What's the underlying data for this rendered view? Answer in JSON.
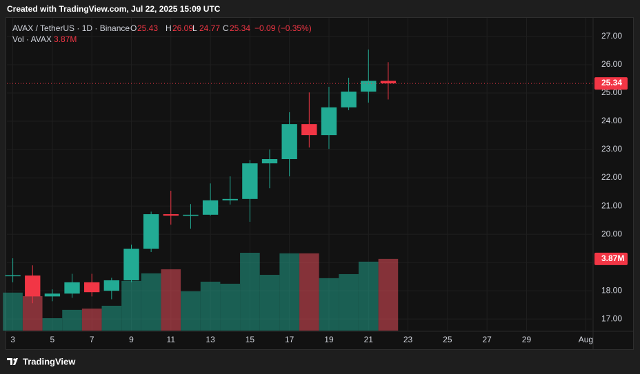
{
  "banner": "Created with TradingView.com, Jul 22, 2025 15:09 UTC",
  "footer": "TradingView",
  "chart_data": {
    "type": "candlestick",
    "symbol": "AVAX / TetherUS · 1D · Binance",
    "ohlc_labels": [
      "O",
      "H",
      "L",
      "C"
    ],
    "change": "−0.09 (−0.35%)",
    "x": [
      3,
      4,
      5,
      6,
      7,
      8,
      9,
      10,
      11,
      12,
      13,
      14,
      15,
      16,
      17,
      18,
      19,
      20,
      21,
      22
    ],
    "open": [
      18.52,
      18.54,
      17.8,
      17.9,
      18.3,
      18.0,
      18.37,
      19.49,
      20.71,
      20.66,
      20.69,
      21.2,
      21.25,
      22.51,
      22.66,
      23.9,
      23.51,
      24.49,
      25.05,
      25.43
    ],
    "high": [
      19.15,
      18.9,
      18.05,
      18.6,
      18.6,
      18.46,
      19.63,
      20.8,
      21.54,
      21.07,
      21.8,
      22.05,
      22.63,
      23.0,
      24.32,
      25.02,
      25.22,
      25.54,
      26.54,
      26.09
    ],
    "low": [
      18.3,
      17.56,
      17.63,
      17.75,
      17.8,
      17.7,
      18.3,
      19.37,
      20.34,
      20.2,
      20.66,
      21.05,
      20.44,
      21.63,
      22.05,
      23.07,
      23.02,
      24.39,
      24.66,
      24.77
    ],
    "close": [
      18.55,
      17.8,
      17.9,
      18.3,
      17.95,
      18.37,
      19.49,
      20.71,
      20.66,
      20.69,
      21.2,
      21.25,
      22.51,
      22.66,
      23.9,
      23.51,
      24.49,
      25.05,
      25.43,
      25.34
    ],
    "up_color": "#22ab94",
    "down_color": "#f23645",
    "volume": {
      "name": "Vol · AVAX",
      "values": [
        2.05,
        1.86,
        0.67,
        1.12,
        1.19,
        1.34,
        2.68,
        3.09,
        3.31,
        2.12,
        2.64,
        2.53,
        4.2,
        3.01,
        4.17,
        4.17,
        2.83,
        3.05,
        3.72,
        3.87
      ],
      "value_labels": [
        null,
        null,
        null,
        null,
        null,
        null,
        null,
        null,
        null,
        null,
        null,
        null,
        null,
        null,
        null,
        null,
        null,
        null,
        null,
        "3.87M"
      ]
    },
    "xlim": [
      2.7,
      32.3
    ],
    "xticks": [
      3,
      5,
      7,
      9,
      11,
      13,
      15,
      17,
      19,
      21,
      23,
      25,
      27,
      29,
      {
        "value": 32,
        "label": "Aug"
      }
    ],
    "ylim": [
      16.59,
      27.56
    ],
    "yticks": [
      {
        "value": 17,
        "label": "17.00"
      },
      {
        "value": 18,
        "label": "18.00"
      },
      {
        "value": 19,
        "label": "19.00"
      },
      {
        "value": 20,
        "label": "20.00"
      },
      {
        "value": 21,
        "label": "21.00"
      },
      {
        "value": 22,
        "label": "22.00"
      },
      {
        "value": 23,
        "label": "23.00"
      },
      {
        "value": 24,
        "label": "24.00"
      },
      {
        "value": 25,
        "label": "25.00"
      },
      {
        "value": 26,
        "label": "26.00"
      },
      {
        "value": 27,
        "label": "27.00"
      }
    ],
    "grid": true
  }
}
